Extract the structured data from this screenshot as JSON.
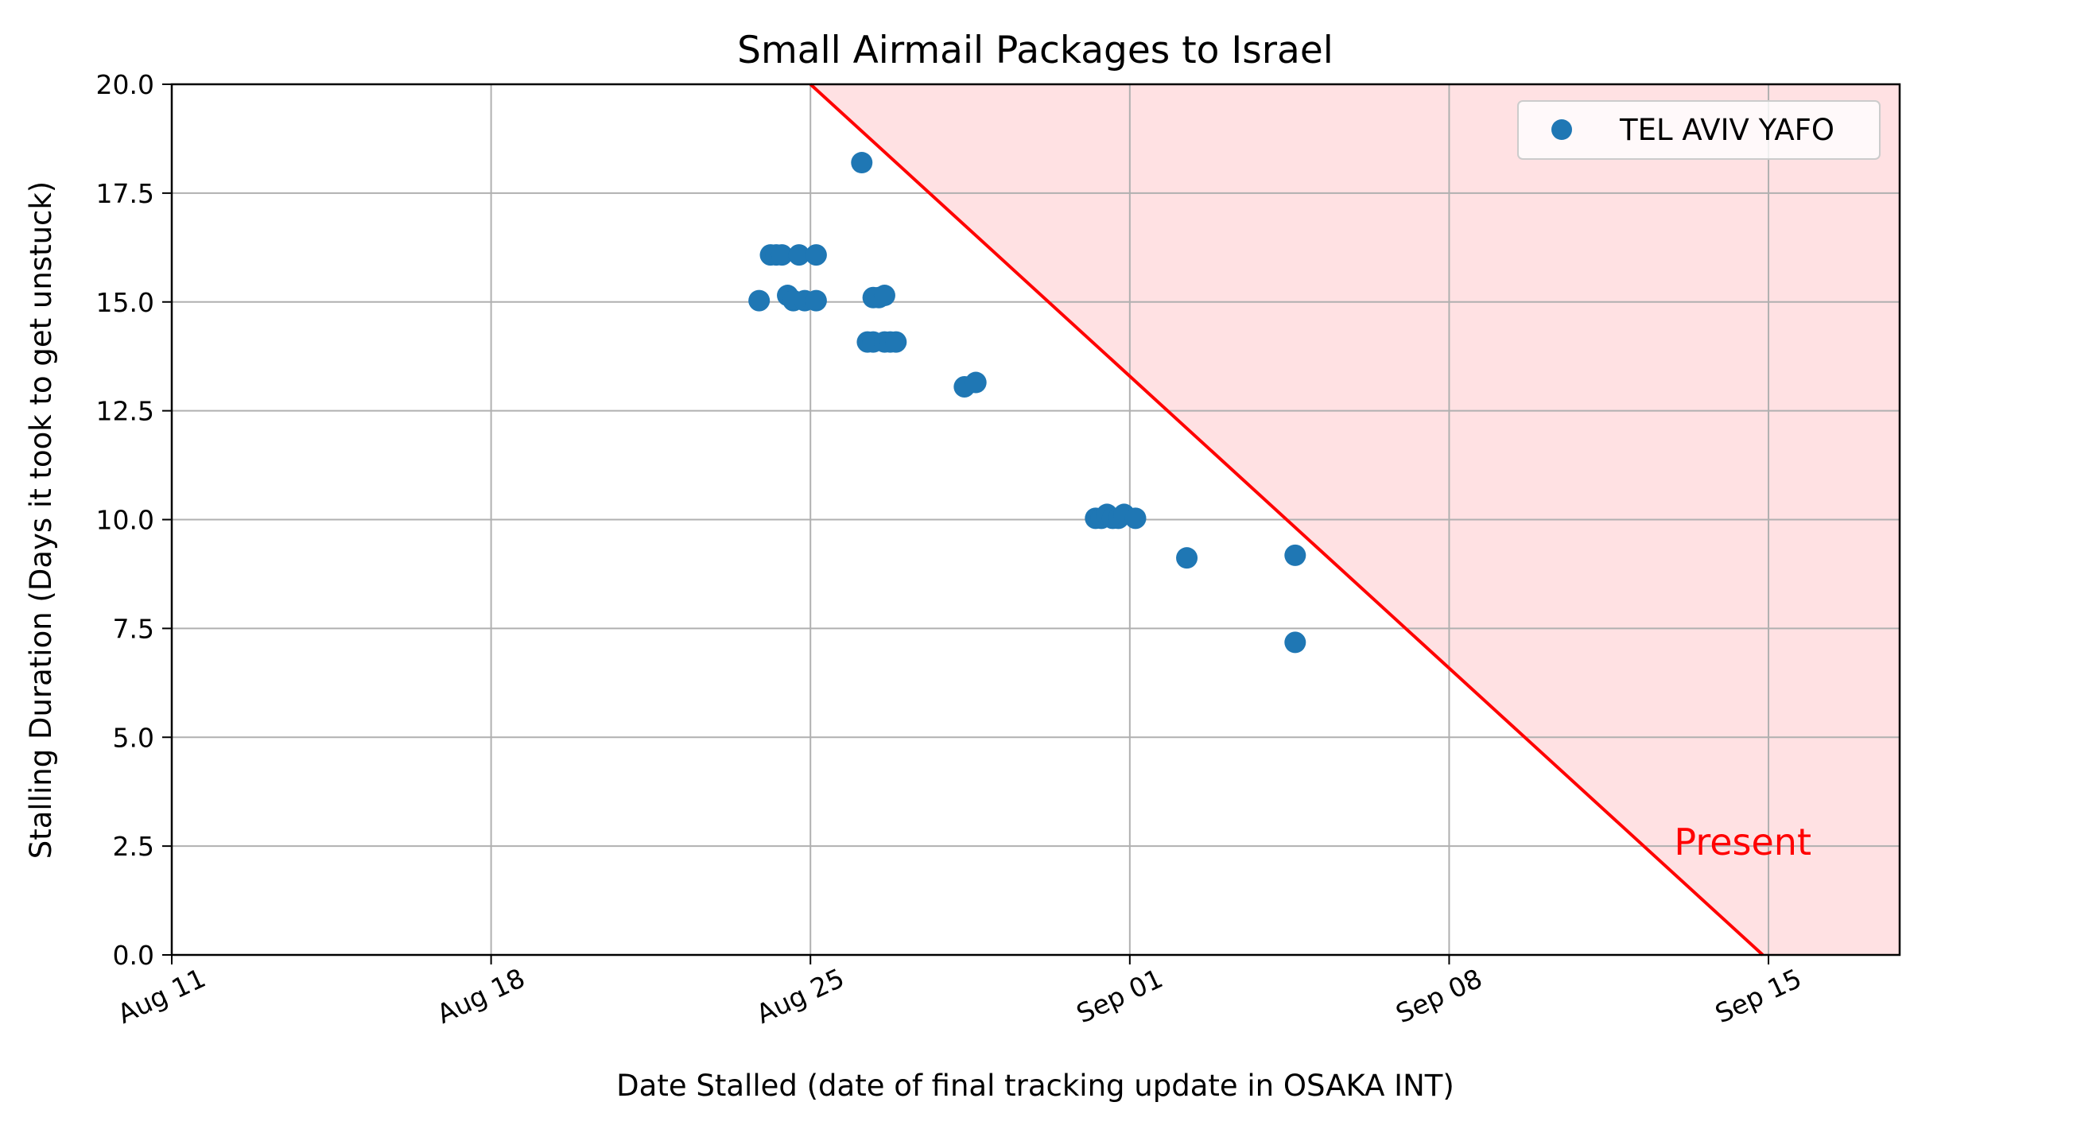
{
  "chart_data": {
    "type": "scatter",
    "title": "Small Airmail Packages to Israel",
    "xlabel": "Date Stalled (date of final tracking update in OSAKA INT)",
    "ylabel": "Stalling Duration (Days it took to get unstuck)",
    "xlim": [
      "2024-08-11",
      "2024-09-17T21:00"
    ],
    "ylim": [
      0,
      20
    ],
    "x_ticks": [
      {
        "date": "2024-08-11",
        "label": "Aug 11"
      },
      {
        "date": "2024-08-18",
        "label": "Aug 18"
      },
      {
        "date": "2024-08-25",
        "label": "Aug 25"
      },
      {
        "date": "2024-09-01",
        "label": "Sep 01"
      },
      {
        "date": "2024-09-08",
        "label": "Sep 08"
      },
      {
        "date": "2024-09-15",
        "label": "Sep 15"
      }
    ],
    "y_ticks": [
      0.0,
      2.5,
      5.0,
      7.5,
      10.0,
      12.5,
      15.0,
      17.5,
      20.0
    ],
    "y_tick_labels": [
      "0.0",
      "2.5",
      "5.0",
      "7.5",
      "10.0",
      "12.5",
      "15.0",
      "17.5",
      "20.0"
    ],
    "grid": true,
    "legend_position": "top-right",
    "series": [
      {
        "name": "TEL AVIV YAFO",
        "color": "#1f77b4",
        "points": [
          {
            "x": "2024-08-23T21:00",
            "y": 15.03
          },
          {
            "x": "2024-08-24T03:00",
            "y": 16.08
          },
          {
            "x": "2024-08-24T06:00",
            "y": 16.08
          },
          {
            "x": "2024-08-24T09:00",
            "y": 16.08
          },
          {
            "x": "2024-08-24T12:00",
            "y": 15.15
          },
          {
            "x": "2024-08-24T15:00",
            "y": 15.03
          },
          {
            "x": "2024-08-24T18:00",
            "y": 16.08
          },
          {
            "x": "2024-08-24T21:00",
            "y": 15.03
          },
          {
            "x": "2024-08-25T03:00",
            "y": 15.03
          },
          {
            "x": "2024-08-25T03:00",
            "y": 16.08
          },
          {
            "x": "2024-08-26T03:00",
            "y": 18.2
          },
          {
            "x": "2024-08-26T06:00",
            "y": 14.08
          },
          {
            "x": "2024-08-26T09:00",
            "y": 14.08
          },
          {
            "x": "2024-08-26T09:00",
            "y": 15.1
          },
          {
            "x": "2024-08-26T12:00",
            "y": 15.1
          },
          {
            "x": "2024-08-26T15:00",
            "y": 14.08
          },
          {
            "x": "2024-08-26T15:00",
            "y": 15.15
          },
          {
            "x": "2024-08-26T18:00",
            "y": 14.08
          },
          {
            "x": "2024-08-26T21:00",
            "y": 14.08
          },
          {
            "x": "2024-08-28T09:00",
            "y": 13.05
          },
          {
            "x": "2024-08-28T15:00",
            "y": 13.15
          },
          {
            "x": "2024-08-31T06:00",
            "y": 10.03
          },
          {
            "x": "2024-08-31T09:00",
            "y": 10.03
          },
          {
            "x": "2024-08-31T12:00",
            "y": 10.12
          },
          {
            "x": "2024-08-31T15:00",
            "y": 10.03
          },
          {
            "x": "2024-08-31T18:00",
            "y": 10.03
          },
          {
            "x": "2024-08-31T21:00",
            "y": 10.12
          },
          {
            "x": "2024-09-01T03:00",
            "y": 10.03
          },
          {
            "x": "2024-09-02T06:00",
            "y": 9.12
          },
          {
            "x": "2024-09-04T15:00",
            "y": 9.18
          },
          {
            "x": "2024-09-04T15:00",
            "y": 7.18
          }
        ]
      }
    ],
    "present_line": {
      "label": "Present",
      "color": "#ff0000",
      "fill_color": "#ffe1e3",
      "date": "2024-09-14T21:00",
      "start": {
        "x": "2024-08-25",
        "y": 20
      },
      "end": {
        "x": "2024-09-14T21:00",
        "y": 0
      }
    }
  }
}
